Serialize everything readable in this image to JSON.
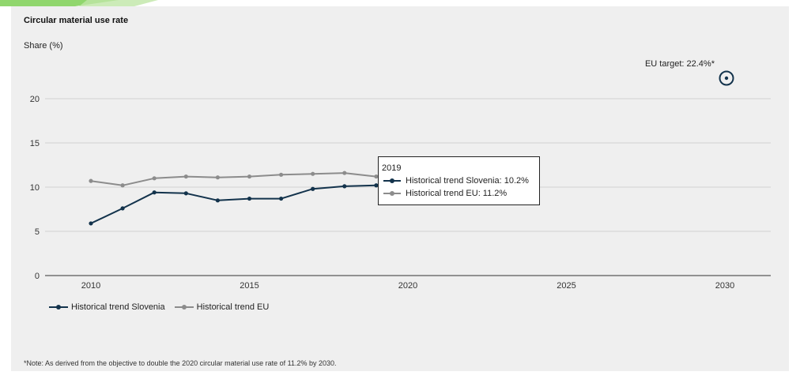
{
  "chart_data": {
    "type": "line",
    "title": "Circular material use rate",
    "ylabel": "Share (%)",
    "xlabel": "",
    "xlim": [
      2009,
      2031
    ],
    "ylim": [
      0,
      22
    ],
    "x_ticks": [
      "2010",
      "2015",
      "2020",
      "2025",
      "2030"
    ],
    "y_ticks": [
      "0",
      "5",
      "10",
      "15",
      "20"
    ],
    "grid": true,
    "legend": "bottom-left",
    "series": [
      {
        "name": "Historical trend Slovenia",
        "color": "#13334c",
        "x": [
          2010,
          2011,
          2012,
          2013,
          2014,
          2015,
          2016,
          2017,
          2018,
          2019
        ],
        "y": [
          5.9,
          7.6,
          9.4,
          9.3,
          8.5,
          8.7,
          8.7,
          9.8,
          10.1,
          10.2
        ]
      },
      {
        "name": "Historical trend EU",
        "color": "#8c8c8c",
        "x": [
          2010,
          2011,
          2012,
          2013,
          2014,
          2015,
          2016,
          2017,
          2018,
          2019
        ],
        "y": [
          10.7,
          10.2,
          11.0,
          11.2,
          11.1,
          11.2,
          11.4,
          11.5,
          11.6,
          11.2
        ]
      }
    ],
    "target": {
      "label": "EU target: 22.4%*",
      "x": 2030,
      "y": 22.4,
      "color": "#13334c"
    },
    "tooltip": {
      "year": "2019",
      "rows": [
        {
          "label": "Historical trend Slovenia: 10.2%",
          "color": "#13334c"
        },
        {
          "label": "Historical trend EU: 11.2%",
          "color": "#8c8c8c"
        }
      ]
    }
  },
  "footnote": "*Note: As derived from the objective to double the 2020 circular material use rate of 11.2% by 2030.",
  "colors": {
    "panel_background": "#efefef",
    "gridline": "#d0d0d0",
    "axis": "#333333",
    "deco_green": "#7ccf53"
  }
}
